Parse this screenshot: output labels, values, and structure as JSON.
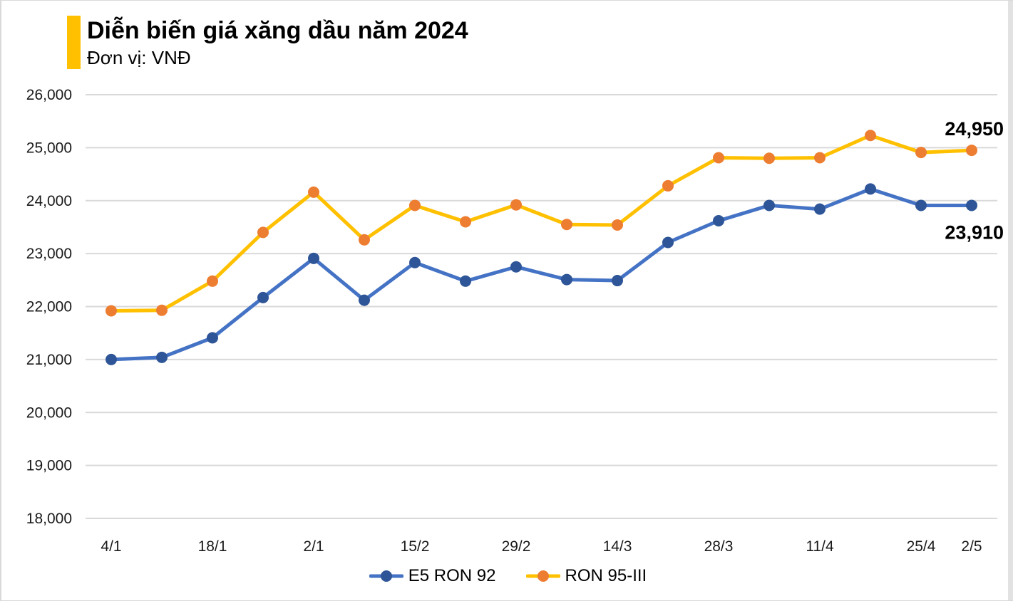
{
  "page": {
    "title": "Diễn biến giá xăng dầu năm 2024",
    "subtitle": "Đơn vị: VNĐ",
    "accent_color": "#FFC000"
  },
  "chart_data": {
    "type": "line",
    "title": "Diễn biến giá xăng dầu năm 2024",
    "unit_label": "Đơn vị: VNĐ",
    "grid": "horizontal",
    "ylim": [
      18000,
      26000
    ],
    "y_ticks": [
      26000,
      25000,
      24000,
      23000,
      22000,
      21000,
      20000,
      19000,
      18000
    ],
    "y_tick_labels": [
      "26,000",
      "25,000",
      "24,000",
      "23,000",
      "22,000",
      "21,000",
      "20,000",
      "19,000",
      "18,000"
    ],
    "points_per_series": 18,
    "x_tick_labels": [
      {
        "index": 0,
        "label": "4/1"
      },
      {
        "index": 2,
        "label": "18/1"
      },
      {
        "index": 4,
        "label": "2/1"
      },
      {
        "index": 6,
        "label": "15/2"
      },
      {
        "index": 8,
        "label": "29/2"
      },
      {
        "index": 10,
        "label": "14/3"
      },
      {
        "index": 12,
        "label": "28/3"
      },
      {
        "index": 14,
        "label": "11/4"
      },
      {
        "index": 16,
        "label": "25/4"
      },
      {
        "index": 17,
        "label": "2/5"
      }
    ],
    "series": [
      {
        "name": "E5 RON 92",
        "line_color": "#4472C4",
        "marker_color": "#2E5597",
        "values": [
          21000,
          21040,
          21410,
          22170,
          22910,
          22120,
          22830,
          22480,
          22750,
          22510,
          22490,
          23210,
          23620,
          23910,
          23840,
          24220,
          23910,
          23910
        ]
      },
      {
        "name": "RON 95-III",
        "line_color": "#FFC000",
        "marker_color": "#ED7D31",
        "values": [
          21920,
          21930,
          22480,
          23400,
          24160,
          23260,
          23910,
          23600,
          23920,
          23550,
          23540,
          24280,
          24810,
          24800,
          24810,
          25230,
          24910,
          24950
        ]
      }
    ],
    "annotations": [
      {
        "text": "24,950",
        "series_index": 1,
        "position": "above-last"
      },
      {
        "text": "23,910",
        "series_index": 0,
        "position": "below-last"
      }
    ],
    "legend": {
      "position": "bottom",
      "items": [
        "E5 RON 92",
        "RON 95-III"
      ]
    },
    "colors": {
      "gridline": "#D9D9D9",
      "axis_text": "#1a1a1a",
      "annotation_text": "#000000"
    }
  }
}
